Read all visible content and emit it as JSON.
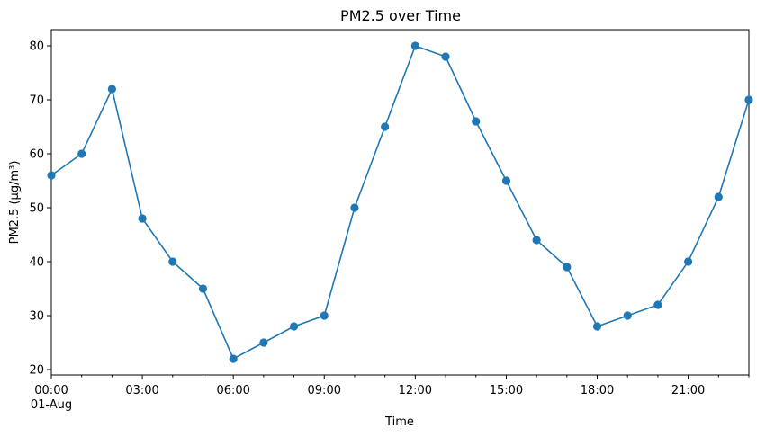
{
  "chart_data": {
    "type": "line",
    "title": "PM2.5 over Time",
    "xlabel": "Time",
    "ylabel": "PM2.5 (µg/m³)",
    "x": [
      "00:00",
      "01:00",
      "02:00",
      "03:00",
      "04:00",
      "05:00",
      "06:00",
      "07:00",
      "08:00",
      "09:00",
      "10:00",
      "11:00",
      "12:00",
      "13:00",
      "14:00",
      "15:00",
      "16:00",
      "17:00",
      "18:00",
      "19:00",
      "20:00",
      "21:00",
      "22:00",
      "23:00"
    ],
    "series": [
      {
        "values": [
          56,
          60,
          72,
          48,
          40,
          35,
          22,
          25,
          28,
          30,
          50,
          65,
          80,
          78,
          66,
          55,
          44,
          39,
          28,
          30,
          32,
          40,
          52,
          70
        ]
      }
    ],
    "x_ticks": [
      "00:00",
      "03:00",
      "06:00",
      "09:00",
      "12:00",
      "15:00",
      "18:00",
      "21:00"
    ],
    "x_date_label": "01-Aug",
    "y_ticks": [
      20,
      30,
      40,
      50,
      60,
      70,
      80
    ],
    "ylim": [
      19,
      83
    ],
    "grid": false,
    "line_color": "#1f77b4",
    "marker": "circle"
  }
}
